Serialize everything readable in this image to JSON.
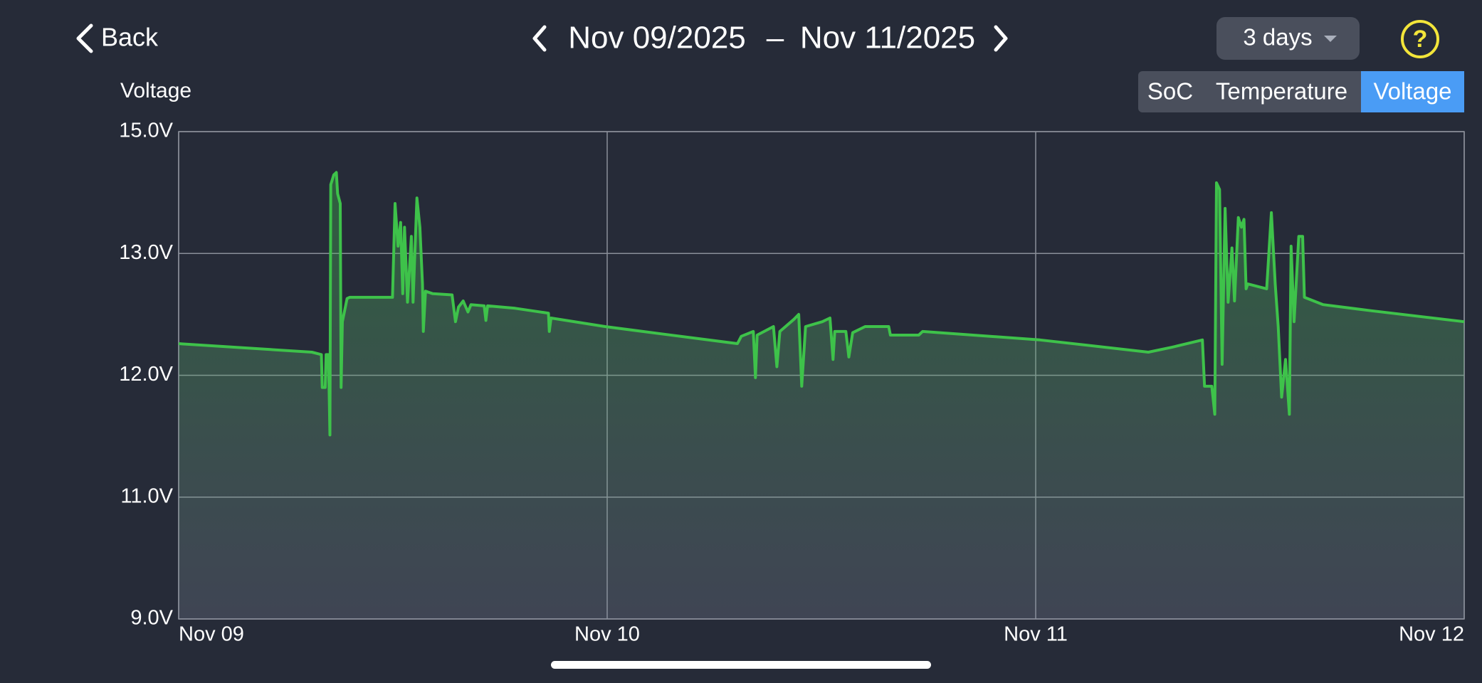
{
  "header": {
    "back": "Back",
    "date_start": "Nov 09/2025",
    "separator": "–",
    "date_end": "Nov 11/2025",
    "range": "3 days",
    "help": "?"
  },
  "tabs": {
    "items": [
      "SoC",
      "Temperature",
      "Voltage"
    ],
    "selected": 2
  },
  "chart_data": {
    "type": "line",
    "y_label": "Voltage",
    "color": "#3ec24a",
    "grid": true,
    "xlim": [
      0,
      3
    ],
    "xticks": [
      {
        "value": 0,
        "label": "Nov 09"
      },
      {
        "value": 1,
        "label": "Nov 10"
      },
      {
        "value": 2,
        "label": "Nov 11"
      },
      {
        "value": 3,
        "label": "Nov 12"
      }
    ],
    "ylim": [
      9,
      15
    ],
    "yticks": [
      {
        "value": 9,
        "label": "9.0V"
      },
      {
        "value": 11,
        "label": "11.0V"
      },
      {
        "value": 12,
        "label": "12.0V"
      },
      {
        "value": 13,
        "label": "13.0V"
      },
      {
        "value": 15,
        "label": "15.0V"
      }
    ],
    "series": [
      {
        "name": "Voltage",
        "color": "#3ec24a",
        "x": [
          0,
          0.311,
          0.333,
          0.335,
          0.342,
          0.344,
          0.349,
          0.351,
          0.353,
          0.355,
          0.362,
          0.368,
          0.371,
          0.377,
          0.379,
          0.382,
          0.393,
          0.399,
          0.499,
          0.505,
          0.512,
          0.518,
          0.523,
          0.527,
          0.534,
          0.543,
          0.547,
          0.556,
          0.563,
          0.569,
          0.571,
          0.576,
          0.593,
          0.638,
          0.646,
          0.653,
          0.664,
          0.675,
          0.682,
          0.713,
          0.717,
          0.721,
          0.785,
          0.863,
          0.865,
          0.869,
          0.995,
          1.127,
          1.304,
          1.313,
          1.341,
          1.346,
          1.35,
          1.388,
          1.396,
          1.403,
          1.436,
          1.447,
          1.454,
          1.463,
          1.502,
          1.52,
          1.527,
          1.531,
          1.557,
          1.564,
          1.573,
          1.602,
          1.657,
          1.661,
          1.727,
          1.736,
          2.01,
          2.263,
          2.318,
          2.389,
          2.394,
          2.411,
          2.418,
          2.422,
          2.429,
          2.435,
          2.442,
          2.449,
          2.458,
          2.464,
          2.473,
          2.48,
          2.486,
          2.491,
          2.495,
          2.539,
          2.55,
          2.559,
          2.566,
          2.574,
          2.583,
          2.592,
          2.596,
          2.603,
          2.614,
          2.623,
          2.627,
          2.671,
          2.782,
          3.0
        ],
        "values": [
          12.26,
          12.19,
          12.17,
          11.9,
          11.9,
          12.17,
          12.17,
          11.9,
          11.51,
          14.13,
          14.29,
          14.33,
          13.98,
          13.82,
          11.9,
          12.44,
          12.63,
          12.64,
          12.64,
          13.82,
          13.12,
          13.51,
          12.67,
          13.43,
          12.6,
          13.28,
          12.6,
          13.91,
          13.43,
          12.75,
          12.36,
          12.69,
          12.67,
          12.66,
          12.44,
          12.56,
          12.61,
          12.52,
          12.58,
          12.57,
          12.45,
          12.57,
          12.55,
          12.51,
          12.36,
          12.47,
          12.4,
          12.34,
          12.26,
          12.32,
          12.36,
          11.98,
          12.33,
          12.4,
          12.07,
          12.36,
          12.46,
          12.5,
          11.91,
          12.4,
          12.44,
          12.47,
          12.13,
          12.36,
          12.36,
          12.15,
          12.35,
          12.4,
          12.4,
          12.33,
          12.33,
          12.36,
          12.29,
          12.19,
          12.23,
          12.29,
          11.91,
          11.91,
          11.68,
          14.16,
          14.05,
          12.09,
          13.74,
          12.6,
          13.09,
          12.61,
          13.59,
          13.43,
          13.56,
          12.71,
          12.75,
          12.71,
          13.67,
          12.75,
          12.4,
          11.82,
          12.13,
          11.68,
          13.12,
          12.44,
          13.28,
          13.28,
          12.64,
          12.58,
          12.53,
          12.44
        ]
      }
    ]
  }
}
